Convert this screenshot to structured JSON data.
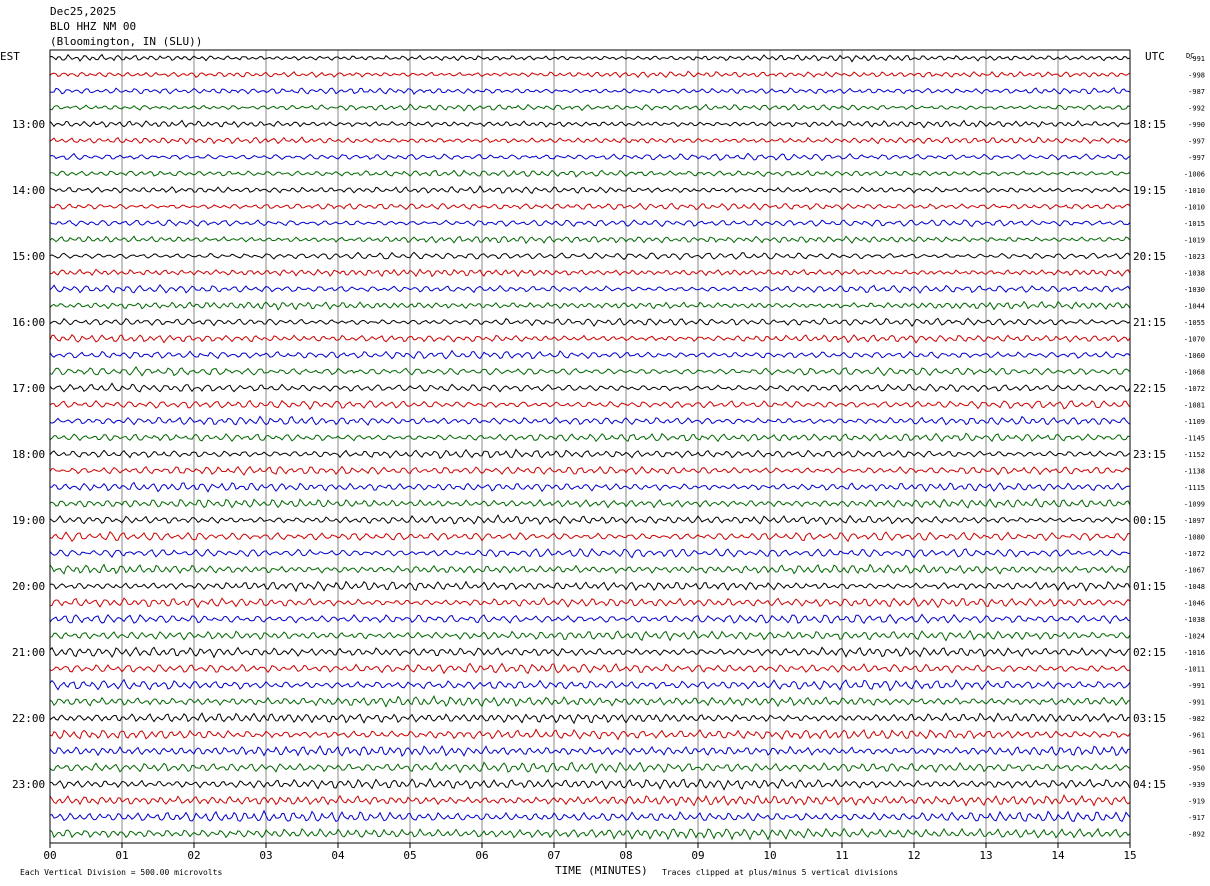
{
  "header": {
    "date": "Dec25,2025",
    "station": "BLO HHZ NM 00",
    "location": "(Bloomington, IN (SLU))"
  },
  "labels": {
    "left_timezone": "EST",
    "right_timezone": "UTC",
    "dc_header": "DC",
    "xlabel": "TIME (MINUTES)",
    "scale_note": "Each Vertical Division =  500.00 microvolts",
    "clip_note": "Traces clipped at plus/minus 5 vertical divisions"
  },
  "chart_data": {
    "type": "line",
    "title": "BLO HHZ NM 00",
    "xlabel": "TIME (MINUTES)",
    "xlim": [
      0,
      15
    ],
    "x_ticks": [
      "00",
      "01",
      "02",
      "03",
      "04",
      "05",
      "06",
      "07",
      "08",
      "09",
      "10",
      "11",
      "12",
      "13",
      "14",
      "15"
    ],
    "trace_colors": [
      "#000000",
      "#cc0000",
      "#0000cc",
      "#006600"
    ],
    "traces_per_hour": 4,
    "trace_count": 48,
    "left_hour_labels": [
      "13:00",
      "14:00",
      "15:00",
      "16:00",
      "17:00",
      "18:00",
      "19:00",
      "20:00",
      "21:00",
      "22:00",
      "23:00"
    ],
    "right_hour_labels": [
      "18:15",
      "19:15",
      "20:15",
      "21:15",
      "22:15",
      "23:15",
      "00:15",
      "01:15",
      "02:15",
      "03:15",
      "04:15"
    ],
    "dc_offsets": [
      -991,
      -998,
      -987,
      -992,
      -990,
      -997,
      -997,
      -1006,
      -1010,
      -1010,
      -1015,
      -1019,
      -1023,
      -1038,
      -1030,
      -1044,
      -1055,
      -1070,
      -1060,
      -1068,
      -1072,
      -1081,
      -1109,
      -1145,
      -1152,
      -1138,
      -1115,
      -1099,
      -1097,
      -1080,
      -1072,
      -1067,
      -1048,
      -1046,
      -1038,
      -1024,
      -1016,
      -1011,
      -991,
      -991,
      -982,
      -961,
      -961,
      -950,
      -939,
      -919,
      -917,
      -892
    ],
    "scale_microvolts_per_division": 500,
    "clip_divisions": 5
  }
}
